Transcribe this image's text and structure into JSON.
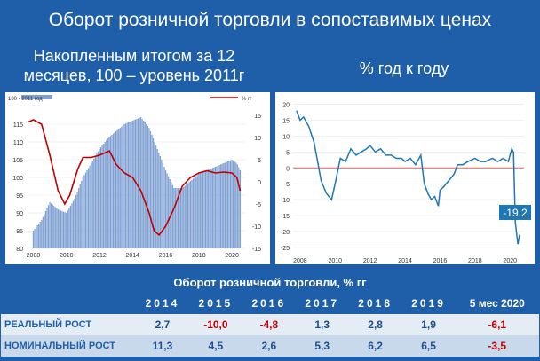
{
  "title": "Оборот розничной торговли в сопоставимых ценах",
  "left_caption": "Накопленным итогом за 12 месяцев, 100 – уровень 2011г",
  "right_caption": "% год к году",
  "colors": {
    "background": "#1f5faa",
    "bars": "#7d9fd3",
    "red_line": "#c00000",
    "blue_line": "#1f77b4",
    "negative": "#c00000"
  },
  "chart_data": [
    {
      "type": "bar",
      "legend": {
        "bars": "100 - 2011 год",
        "line": "% гг"
      },
      "x_ticks": [
        "2008",
        "2010",
        "2012",
        "2014",
        "2016",
        "2018",
        "2020"
      ],
      "x_range": [
        2007.6,
        2020.8
      ],
      "left_axis": {
        "ticks": [
          "80",
          "85",
          "90",
          "95",
          "100",
          "105",
          "110",
          "115"
        ],
        "ylim": [
          80,
          120
        ]
      },
      "right_axis": {
        "ticks": [
          "-15",
          "-10",
          "-5",
          "0",
          "5",
          "10",
          "15"
        ],
        "ylim": [
          -15,
          17
        ]
      },
      "bars": {
        "x": [
          2008.0,
          2008.5,
          2009.0,
          2009.5,
          2010.0,
          2010.5,
          2011.0,
          2011.5,
          2012.0,
          2012.5,
          2013.0,
          2013.5,
          2014.0,
          2014.5,
          2015.0,
          2015.5,
          2016.0,
          2016.5,
          2017.0,
          2017.5,
          2018.0,
          2018.5,
          2019.0,
          2019.5,
          2020.0,
          2020.3,
          2020.5
        ],
        "values": [
          85,
          88,
          93,
          91,
          90,
          94,
          100,
          104,
          108,
          111,
          113,
          115,
          116,
          117,
          114,
          108,
          102,
          97,
          97,
          99,
          101,
          102,
          103,
          104,
          105,
          104,
          102
        ]
      },
      "line": {
        "x": [
          2007.7,
          2008.0,
          2008.5,
          2009.0,
          2009.5,
          2009.9,
          2010.2,
          2010.7,
          2011.0,
          2011.5,
          2012.0,
          2012.6,
          2013.0,
          2013.5,
          2014.0,
          2014.5,
          2015.0,
          2015.3,
          2015.6,
          2015.8,
          2016.0,
          2016.5,
          2017.0,
          2017.5,
          2018.0,
          2018.5,
          2019.0,
          2019.5,
          2020.0,
          2020.3,
          2020.5
        ],
        "values": [
          13.5,
          14,
          13,
          6,
          -2,
          -5,
          -3,
          3,
          5.5,
          5.5,
          6,
          7,
          4,
          2,
          1,
          -2,
          -7,
          -11,
          -12,
          -11,
          -10,
          -6,
          -1,
          1,
          2,
          2.5,
          2,
          2.2,
          2,
          1,
          -2
        ]
      }
    },
    {
      "type": "line",
      "x_ticks": [
        "2008",
        "2010",
        "2012",
        "2014",
        "2016",
        "2018",
        "2020"
      ],
      "y_ticks": [
        "20",
        "15",
        "10",
        "5",
        "0",
        "-5",
        "-10",
        "-15",
        "-20",
        "-25"
      ],
      "x_range": [
        2007.6,
        2020.8
      ],
      "ylim": [
        -27,
        21
      ],
      "annotation": "-19.2",
      "series": [
        {
          "x": [
            2007.8,
            2008.0,
            2008.2,
            2008.5,
            2008.8,
            2009.0,
            2009.2,
            2009.5,
            2009.8,
            2010.0,
            2010.3,
            2010.6,
            2010.9,
            2011.2,
            2011.5,
            2011.8,
            2012.0,
            2012.3,
            2012.6,
            2012.9,
            2013.2,
            2013.5,
            2013.8,
            2014.0,
            2014.3,
            2014.6,
            2014.9,
            2015.1,
            2015.3,
            2015.5,
            2015.7,
            2015.9,
            2016.0,
            2016.2,
            2016.5,
            2016.8,
            2017.0,
            2017.3,
            2017.6,
            2018.0,
            2018.3,
            2018.6,
            2019.0,
            2019.3,
            2019.6,
            2019.9,
            2020.1,
            2020.2,
            2020.3,
            2020.35,
            2020.45,
            2020.55
          ],
          "values": [
            18,
            15,
            16,
            13,
            8,
            2,
            -4,
            -8,
            -10,
            -5,
            3,
            2,
            6,
            4,
            5,
            6,
            7,
            5,
            6,
            4,
            4,
            3,
            3,
            2,
            3,
            1,
            4,
            -5,
            -8,
            -10,
            -9,
            -12,
            -7,
            -6,
            -4,
            -2,
            1,
            1,
            2,
            3,
            2,
            2,
            3,
            2,
            3,
            2,
            6,
            5,
            -17,
            -19.2,
            -24,
            -21
          ]
        }
      ]
    }
  ],
  "table": {
    "title": "Оборот розничной торговли, % гг",
    "years": [
      "2014",
      "2015",
      "2016",
      "2017",
      "2018",
      "2019",
      "5 мес 2020"
    ],
    "rows": [
      {
        "label": "РЕАЛЬНЫЙ РОСТ",
        "values": [
          "2,7",
          "-10,0",
          "-4,8",
          "1,3",
          "2,8",
          "1,9",
          "-6,1"
        ]
      },
      {
        "label": "НОМИНАЛЬНЫЙ РОСТ",
        "values": [
          "11,3",
          "4,5",
          "2,6",
          "5,3",
          "6,2",
          "6,5",
          "-3,5"
        ]
      }
    ]
  }
}
